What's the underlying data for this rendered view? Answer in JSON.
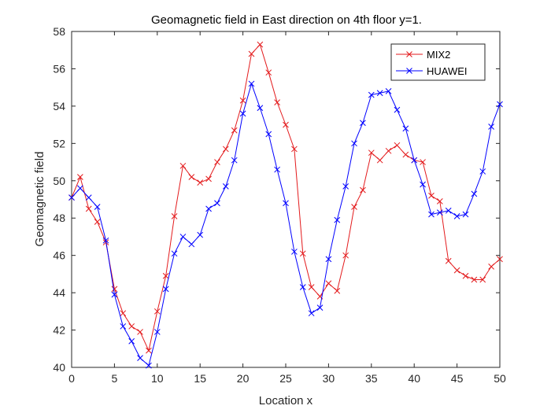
{
  "chart_data": {
    "type": "line",
    "title": "Geomagnetic field in East direction on 4th floor y=1.",
    "xlabel": "Location x",
    "ylabel": "Geomagnetic field",
    "xlim": [
      0,
      50
    ],
    "ylim": [
      40,
      58
    ],
    "xticks": [
      0,
      5,
      10,
      15,
      20,
      25,
      30,
      35,
      40,
      45,
      50
    ],
    "yticks": [
      40,
      42,
      44,
      46,
      48,
      50,
      52,
      54,
      56,
      58
    ],
    "grid": false,
    "legend_position": "top-right",
    "marker": "x",
    "x": [
      0,
      1,
      2,
      3,
      4,
      5,
      6,
      7,
      8,
      9,
      10,
      11,
      12,
      13,
      14,
      15,
      16,
      17,
      18,
      19,
      20,
      21,
      22,
      23,
      24,
      25,
      26,
      27,
      28,
      29,
      30,
      31,
      32,
      33,
      34,
      35,
      36,
      37,
      38,
      39,
      40,
      41,
      42,
      43,
      44,
      45,
      46,
      47,
      48,
      49,
      50
    ],
    "series": [
      {
        "name": "MIX2",
        "color": "#e31a1c",
        "values": [
          49.1,
          50.2,
          48.5,
          47.8,
          46.7,
          44.2,
          42.9,
          42.2,
          41.9,
          40.9,
          43.0,
          44.9,
          48.1,
          50.8,
          50.2,
          49.9,
          50.1,
          51.0,
          51.7,
          52.7,
          54.3,
          56.8,
          57.3,
          55.8,
          54.2,
          53.0,
          51.7,
          46.1,
          44.3,
          43.8,
          44.5,
          44.1,
          46.0,
          48.6,
          49.5,
          51.5,
          51.1,
          51.6,
          51.9,
          51.4,
          51.1,
          51.0,
          49.2,
          48.9,
          45.7,
          45.2,
          44.9,
          44.7,
          44.7,
          45.4,
          45.8
        ]
      },
      {
        "name": "HUAWEI",
        "color": "#0000ff",
        "values": [
          49.1,
          49.6,
          49.1,
          48.6,
          46.8,
          43.9,
          42.2,
          41.4,
          40.5,
          40.1,
          41.9,
          44.2,
          46.1,
          47.0,
          46.6,
          47.1,
          48.5,
          48.8,
          49.7,
          51.1,
          53.6,
          55.2,
          53.9,
          52.5,
          50.6,
          48.8,
          46.2,
          44.3,
          42.9,
          43.2,
          45.8,
          47.9,
          49.7,
          52.0,
          53.1,
          54.6,
          54.7,
          54.8,
          53.8,
          52.8,
          51.1,
          49.8,
          48.2,
          48.3,
          48.4,
          48.1,
          48.2,
          49.3,
          50.5,
          52.9,
          54.1
        ]
      }
    ]
  }
}
